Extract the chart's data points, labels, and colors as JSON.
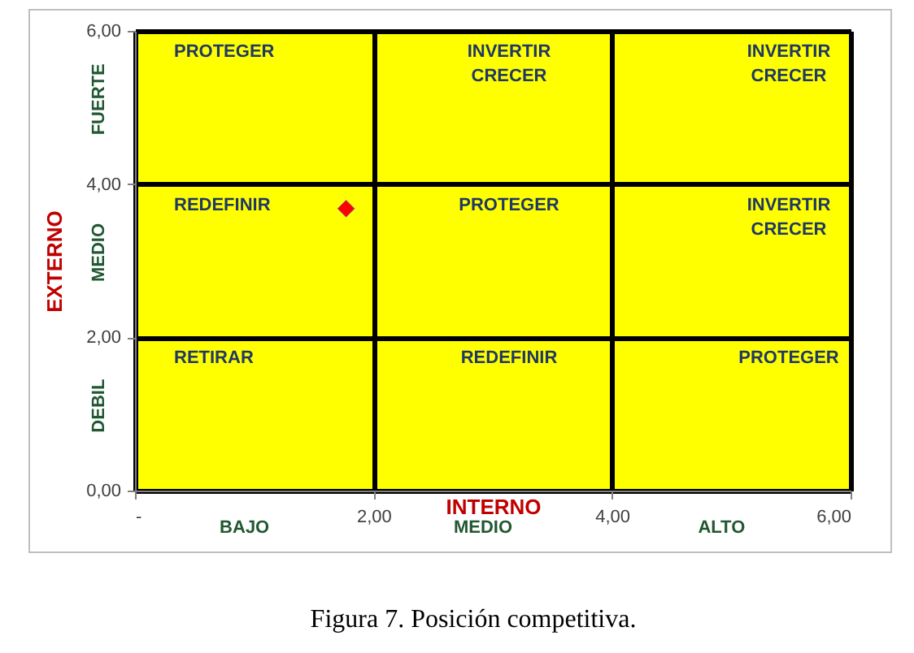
{
  "chart_data": {
    "type": "scatter",
    "x": [
      1.77
    ],
    "series": [
      {
        "color": "#ff0000",
        "values": [
          3.68
        ]
      }
    ],
    "marker": "diamond",
    "xlabel": "INTERNO",
    "ylabel": "EXTERNO",
    "xlim": [
      0,
      6
    ],
    "ylim": [
      0,
      6
    ],
    "xticks": [
      {
        "value": 0,
        "label": "-"
      },
      {
        "value": 2,
        "label": "2,00"
      },
      {
        "value": 4,
        "label": "4,00"
      },
      {
        "value": 6,
        "label": "6,00"
      }
    ],
    "yticks": [
      {
        "value": 0,
        "label": "0,00"
      },
      {
        "value": 2,
        "label": "2,00"
      },
      {
        "value": 4,
        "label": "4,00"
      },
      {
        "value": 6,
        "label": "6,00"
      }
    ],
    "grid": true,
    "annotations": [
      "PROTEGER",
      "INVERTIR\nCRECER",
      "INVERTIR\nCRECER",
      "REDEFINIR",
      "PROTEGER",
      "INVERTIR\nCRECER",
      "RETIRAR",
      "REDEFINIR",
      "PROTEGER",
      "BAJO",
      "MEDIO",
      "ALTO",
      "FUERTE",
      "MEDIO",
      "DEBIL",
      "Figura 7.  Posición competitiva."
    ]
  }
}
